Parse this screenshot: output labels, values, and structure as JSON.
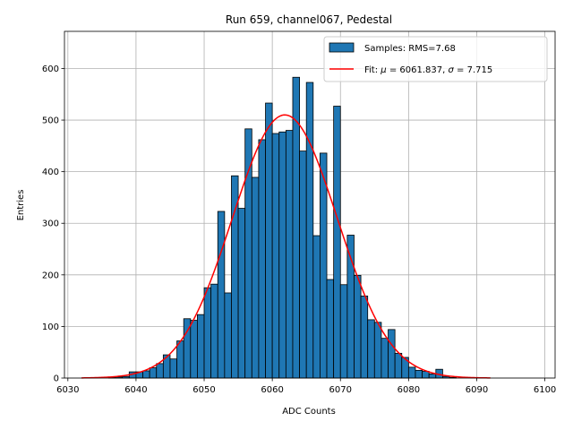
{
  "chart_data": {
    "type": "bar",
    "title": "Run 659, channel067, Pedestal",
    "xlabel": "ADC Counts",
    "ylabel": "Entries",
    "xlim": [
      6029.5,
      6101.5
    ],
    "ylim": [
      0,
      672
    ],
    "xticks": [
      6030,
      6040,
      6050,
      6060,
      6070,
      6080,
      6090,
      6100
    ],
    "yticks": [
      0,
      100,
      200,
      300,
      400,
      500,
      600
    ],
    "grid": true,
    "legend_position": "top-right",
    "colors": {
      "bars": "#1f77b4",
      "bar_edge": "#000000",
      "fit": "#ff0000",
      "grid": "#b0b0b0"
    },
    "histogram": {
      "name": "Samples: RMS=7.68",
      "bin_width": 1,
      "bin_starts": [
        6036,
        6037,
        6038,
        6039,
        6040,
        6041,
        6042,
        6043,
        6044,
        6045,
        6046,
        6047,
        6048,
        6049,
        6050,
        6051,
        6052,
        6053,
        6054,
        6055,
        6056,
        6057,
        6058,
        6059,
        6060,
        6061,
        6062,
        6063,
        6064,
        6065,
        6066,
        6067,
        6068,
        6069,
        6070,
        6071,
        6072,
        6073,
        6074,
        6075,
        6076,
        6077,
        6078,
        6079,
        6080,
        6081,
        6082,
        6083,
        6084,
        6085,
        6086
      ],
      "values": [
        1,
        2,
        3,
        12,
        12,
        14,
        20,
        28,
        45,
        37,
        72,
        115,
        112,
        123,
        175,
        182,
        323,
        165,
        392,
        329,
        483,
        389,
        462,
        533,
        474,
        477,
        480,
        583,
        440,
        573,
        276,
        436,
        191,
        527,
        181,
        277,
        199,
        159,
        113,
        108,
        77,
        94,
        48,
        40,
        21,
        15,
        13,
        8,
        17,
        3,
        1
      ]
    },
    "fit": {
      "name_prefix": "Fit: ",
      "mu_symbol": "μ",
      "sigma_symbol": "σ",
      "mu": 6061.837,
      "sigma": 7.715,
      "mu_text": "6061.837",
      "sigma_text": "7.715",
      "amplitude": 510,
      "x_range": [
        6032,
        6092
      ]
    }
  }
}
